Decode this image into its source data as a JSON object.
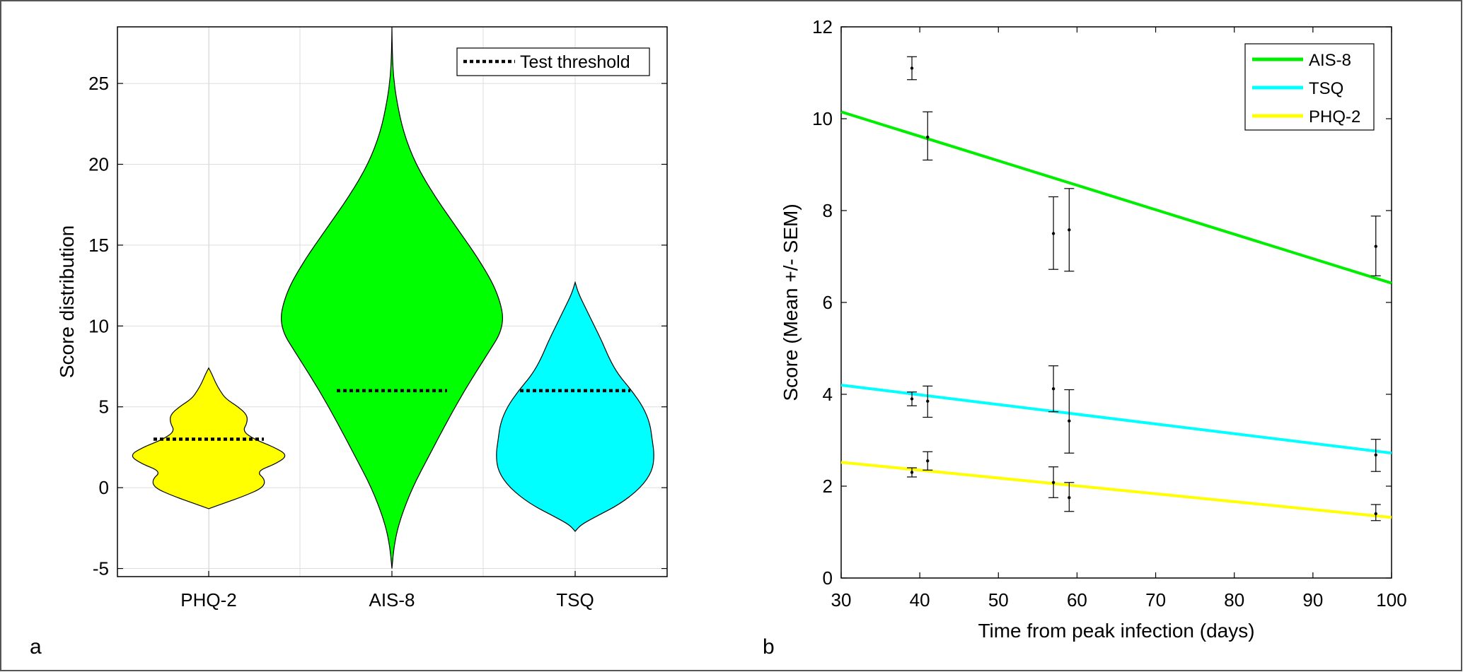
{
  "panel_labels": {
    "a": "a",
    "b": "b"
  },
  "chart_data": [
    {
      "type": "violin",
      "title": "",
      "xlabel": "",
      "ylabel": "Score distribution",
      "ylim": [
        -5.5,
        28.5
      ],
      "yticks": [
        -5,
        0,
        5,
        10,
        15,
        20,
        25
      ],
      "grid": true,
      "legend": {
        "location": "top-right",
        "entries": [
          {
            "label": "Test threshold",
            "style": "dotted",
            "color": "#000000"
          }
        ]
      },
      "categories": [
        "PHQ-2",
        "AIS-8",
        "TSQ"
      ],
      "series": [
        {
          "category": "PHQ-2",
          "color": "#ffff00",
          "threshold": 3,
          "min": -1.3,
          "max": 7.4,
          "profile": [
            [
              -1.3,
              0.0
            ],
            [
              -1.0,
              0.12
            ],
            [
              -0.5,
              0.32
            ],
            [
              0,
              0.48
            ],
            [
              0.5,
              0.5
            ],
            [
              1.0,
              0.42
            ],
            [
              1.5,
              0.6
            ],
            [
              2.0,
              0.7
            ],
            [
              2.5,
              0.58
            ],
            [
              3.0,
              0.4
            ],
            [
              3.5,
              0.3
            ],
            [
              4.0,
              0.34
            ],
            [
              4.5,
              0.34
            ],
            [
              5.0,
              0.26
            ],
            [
              5.5,
              0.15
            ],
            [
              6.0,
              0.1
            ],
            [
              6.5,
              0.06
            ],
            [
              7.0,
              0.03
            ],
            [
              7.4,
              0.0
            ]
          ]
        },
        {
          "category": "AIS-8",
          "color": "#00ff00",
          "threshold": 6,
          "min": -5.0,
          "max": 28.5,
          "profile": [
            [
              -5.0,
              0.0
            ],
            [
              -3.5,
              0.02
            ],
            [
              -2.0,
              0.07
            ],
            [
              0,
              0.18
            ],
            [
              2.0,
              0.33
            ],
            [
              4.0,
              0.48
            ],
            [
              6.0,
              0.64
            ],
            [
              8.0,
              0.82
            ],
            [
              10.0,
              1.0
            ],
            [
              12.0,
              0.94
            ],
            [
              14.0,
              0.78
            ],
            [
              16.0,
              0.58
            ],
            [
              18.0,
              0.38
            ],
            [
              20.0,
              0.21
            ],
            [
              22.0,
              0.1
            ],
            [
              24.0,
              0.04
            ],
            [
              25.5,
              0.012
            ],
            [
              27.0,
              0.003
            ],
            [
              28.5,
              0.0
            ]
          ]
        },
        {
          "category": "TSQ",
          "color": "#00ffff",
          "threshold": 6,
          "min": -2.7,
          "max": 12.7,
          "profile": [
            [
              -2.7,
              0.0
            ],
            [
              -2.3,
              0.05
            ],
            [
              -1.8,
              0.18
            ],
            [
              -1.0,
              0.4
            ],
            [
              0,
              0.58
            ],
            [
              1.0,
              0.68
            ],
            [
              2.0,
              0.7
            ],
            [
              3.0,
              0.68
            ],
            [
              4.0,
              0.66
            ],
            [
              5.0,
              0.6
            ],
            [
              6.0,
              0.5
            ],
            [
              7.0,
              0.38
            ],
            [
              8.0,
              0.3
            ],
            [
              9.0,
              0.24
            ],
            [
              10.0,
              0.17
            ],
            [
              11.0,
              0.1
            ],
            [
              12.0,
              0.03
            ],
            [
              12.7,
              0.0
            ]
          ]
        }
      ]
    },
    {
      "type": "line",
      "title": "",
      "xlabel": "Time from peak infection (days)",
      "ylabel": "Score (Mean +/- SEM)",
      "xlim": [
        30,
        100
      ],
      "ylim": [
        0,
        12
      ],
      "xticks": [
        30,
        40,
        50,
        60,
        70,
        80,
        90,
        100
      ],
      "yticks": [
        0,
        2,
        4,
        6,
        8,
        10,
        12
      ],
      "grid": false,
      "legend": {
        "location": "top-right"
      },
      "series": [
        {
          "name": "AIS-8",
          "color": "#00ee00",
          "fit": {
            "x": [
              30,
              100
            ],
            "y": [
              10.15,
              6.42
            ]
          },
          "points": [
            {
              "x": 39,
              "mean": 11.1,
              "low": 10.85,
              "high": 11.35
            },
            {
              "x": 41,
              "mean": 9.6,
              "low": 9.1,
              "high": 10.15
            },
            {
              "x": 57,
              "mean": 7.5,
              "low": 6.72,
              "high": 8.3
            },
            {
              "x": 59,
              "mean": 7.58,
              "low": 6.68,
              "high": 8.48
            },
            {
              "x": 98,
              "mean": 7.22,
              "low": 6.58,
              "high": 7.88
            }
          ]
        },
        {
          "name": "TSQ",
          "color": "#00ffff",
          "fit": {
            "x": [
              30,
              100
            ],
            "y": [
              4.2,
              2.72
            ]
          },
          "points": [
            {
              "x": 39,
              "mean": 3.9,
              "low": 3.75,
              "high": 4.05
            },
            {
              "x": 41,
              "mean": 3.85,
              "low": 3.5,
              "high": 4.18
            },
            {
              "x": 57,
              "mean": 4.12,
              "low": 3.62,
              "high": 4.62
            },
            {
              "x": 59,
              "mean": 3.42,
              "low": 2.72,
              "high": 4.1
            },
            {
              "x": 98,
              "mean": 2.68,
              "low": 2.32,
              "high": 3.02
            }
          ]
        },
        {
          "name": "PHQ-2",
          "color": "#ffff00",
          "fit": {
            "x": [
              30,
              100
            ],
            "y": [
              2.52,
              1.32
            ]
          },
          "points": [
            {
              "x": 39,
              "mean": 2.3,
              "low": 2.2,
              "high": 2.4
            },
            {
              "x": 41,
              "mean": 2.55,
              "low": 2.35,
              "high": 2.75
            },
            {
              "x": 57,
              "mean": 2.08,
              "low": 1.75,
              "high": 2.42
            },
            {
              "x": 59,
              "mean": 1.75,
              "low": 1.45,
              "high": 2.08
            },
            {
              "x": 98,
              "mean": 1.4,
              "low": 1.25,
              "high": 1.6
            }
          ]
        }
      ]
    }
  ]
}
